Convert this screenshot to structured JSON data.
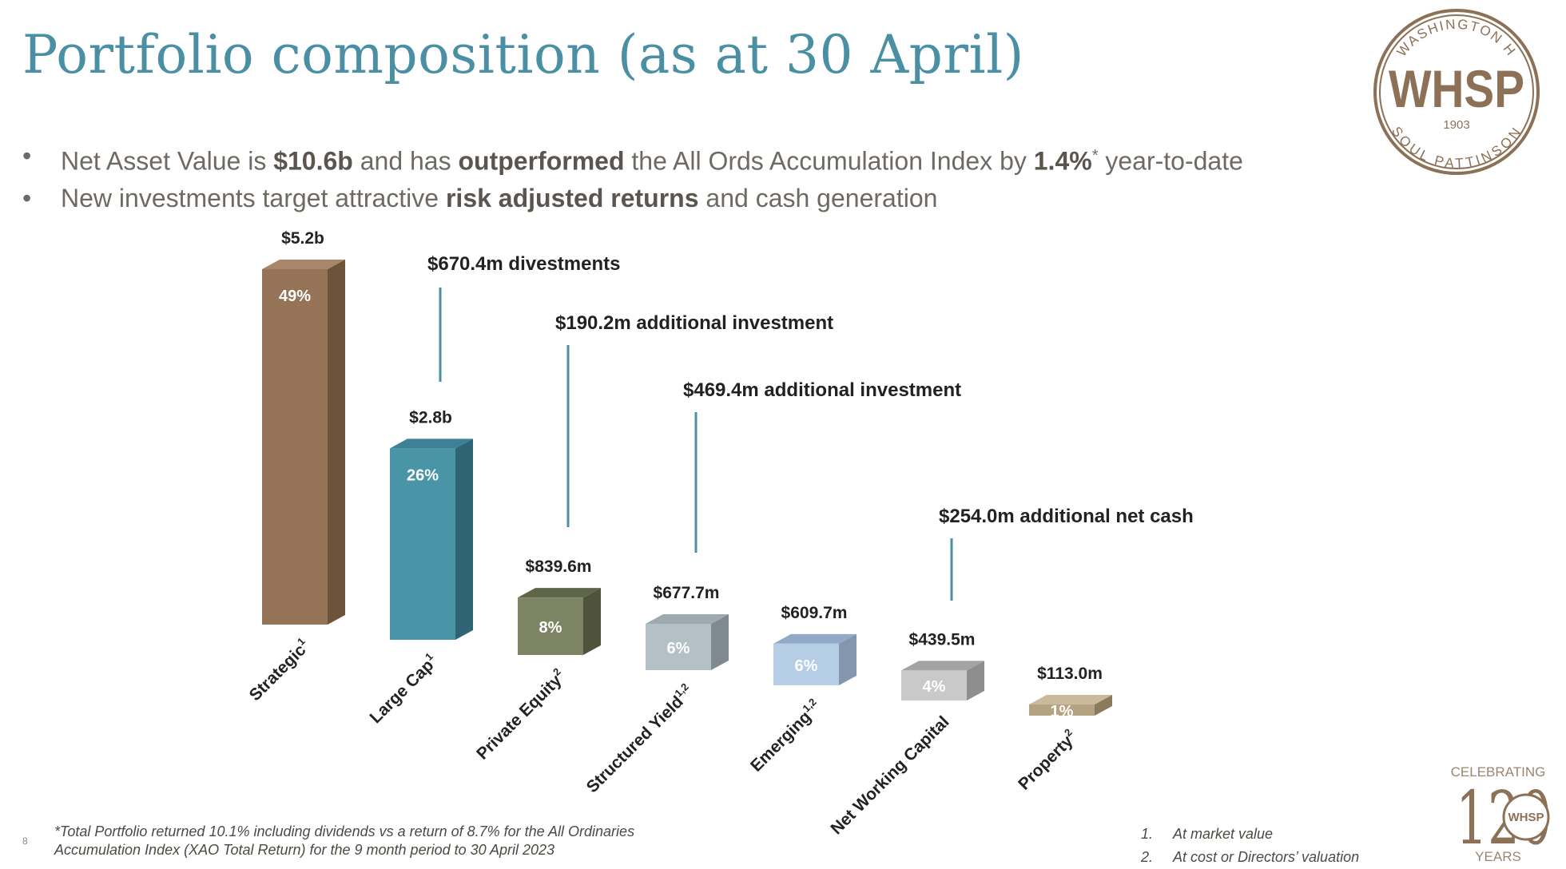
{
  "title": "Portfolio composition (as at 30 April)",
  "bullets": [
    {
      "parts": [
        {
          "text": "Net Asset Value is ",
          "bold": false
        },
        {
          "text": "$10.6b",
          "bold": true
        },
        {
          "text": " and has ",
          "bold": false
        },
        {
          "text": "outperformed",
          "bold": true
        },
        {
          "text": " the All Ords Accumulation Index by ",
          "bold": false
        },
        {
          "text": "1.4%",
          "bold": true
        },
        {
          "text": "*",
          "sup": true
        },
        {
          "text": " year-to-date",
          "bold": false
        }
      ]
    },
    {
      "parts": [
        {
          "text": "New investments target attractive ",
          "bold": false
        },
        {
          "text": "risk adjusted returns",
          "bold": true
        },
        {
          "text": " and cash generation",
          "bold": false
        }
      ]
    }
  ],
  "logo": {
    "main": "WHSP",
    "top_arc": "WASHINGTON H",
    "bottom_arc": "SOUL PATTINSON",
    "year": "1903"
  },
  "chart_data": {
    "type": "bar",
    "style": "3d",
    "categories": [
      "Strategic",
      "Large Cap",
      "Private Equity",
      "Structured Yield",
      "Emerging",
      "Net Working Capital",
      "Property"
    ],
    "category_superscripts": [
      "1",
      "1",
      "2",
      "1,2",
      "1,2",
      "",
      "2"
    ],
    "values_millions": [
      5200,
      2800,
      839.6,
      677.7,
      609.7,
      439.5,
      113.0
    ],
    "value_labels": [
      "$5.2b",
      "$2.8b",
      "$839.6m",
      "$677.7m",
      "$609.7m",
      "$439.5m",
      "$113.0m"
    ],
    "percent_labels": [
      "49%",
      "26%",
      "8%",
      "6%",
      "6%",
      "4%",
      "1%"
    ],
    "colors": {
      "front": [
        "#947356",
        "#4a94a8",
        "#7d8464",
        "#b3c0c6",
        "#b6cde6",
        "#c9c9c9",
        "#b5a282"
      ],
      "side": [
        "#6d5339",
        "#2f6474",
        "#4f533e",
        "#7e8a90",
        "#8496ad",
        "#8e8e8e",
        "#8b7a5c"
      ],
      "top": [
        "#a7866a",
        "#3e8194",
        "#5e6549",
        "#9eaab0",
        "#93a9c8",
        "#a3a3a3",
        "#cbb99c"
      ]
    },
    "annotations": [
      {
        "text": "$670.4m divestments",
        "between": "Large Cap"
      },
      {
        "text": "$190.2m additional investment",
        "between": "Private Equity"
      },
      {
        "text": "$469.4m additional investment",
        "between": "Structured Yield"
      },
      {
        "text": "$254.0m additional net cash",
        "between": "Net Working Capital"
      }
    ],
    "annotation_line_color": "#4a8fa3"
  },
  "footnote": [
    "*Total Portfolio returned 10.1% including dividends vs a return of 8.7% for the All Ordinaries",
    "Accumulation Index (XAO Total Return) for the 9 month period to 30 April 2023"
  ],
  "page_number": "8",
  "notes": [
    {
      "num": "1.",
      "text": "At market value"
    },
    {
      "num": "2.",
      "text": "At cost or Directors’ valuation"
    }
  ],
  "celebrating": {
    "top": "CELEBRATING",
    "number": "120",
    "bottom": "YEARS",
    "badge": "WHSP"
  }
}
